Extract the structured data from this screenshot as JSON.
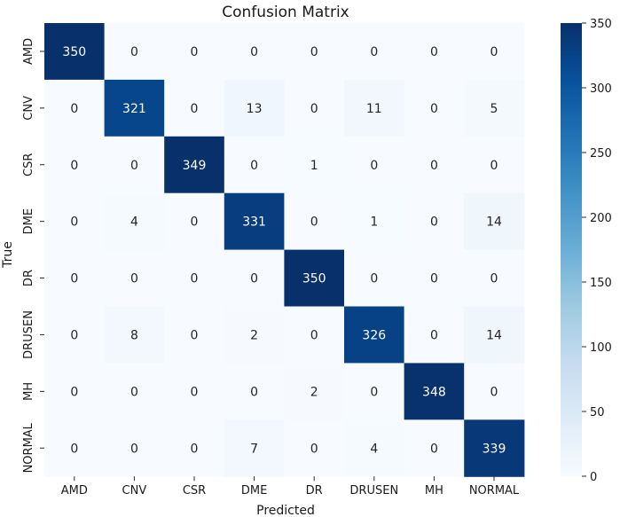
{
  "chart_data": {
    "type": "heatmap",
    "title": "Confusion Matrix",
    "xlabel": "Predicted",
    "ylabel": "True",
    "x_categories": [
      "AMD",
      "CNV",
      "CSR",
      "DME",
      "DR",
      "DRUSEN",
      "MH",
      "NORMAL"
    ],
    "y_categories": [
      "AMD",
      "CNV",
      "CSR",
      "DME",
      "DR",
      "DRUSEN",
      "MH",
      "NORMAL"
    ],
    "values": [
      [
        350,
        0,
        0,
        0,
        0,
        0,
        0,
        0
      ],
      [
        0,
        321,
        0,
        13,
        0,
        11,
        0,
        5
      ],
      [
        0,
        0,
        349,
        0,
        1,
        0,
        0,
        0
      ],
      [
        0,
        4,
        0,
        331,
        0,
        1,
        0,
        14
      ],
      [
        0,
        0,
        0,
        0,
        350,
        0,
        0,
        0
      ],
      [
        0,
        8,
        0,
        2,
        0,
        326,
        0,
        14
      ],
      [
        0,
        0,
        0,
        0,
        2,
        0,
        348,
        0
      ],
      [
        0,
        0,
        0,
        7,
        0,
        4,
        0,
        339
      ]
    ],
    "colorbar": {
      "range": [
        0,
        350
      ],
      "ticks": [
        0,
        50,
        100,
        150,
        200,
        250,
        300,
        350
      ]
    },
    "colormap": "Blues",
    "colors": {
      "low": "#f7fbff",
      "high": "#08306b",
      "text_dark": "#262626",
      "text_light": "#ffffff"
    }
  }
}
